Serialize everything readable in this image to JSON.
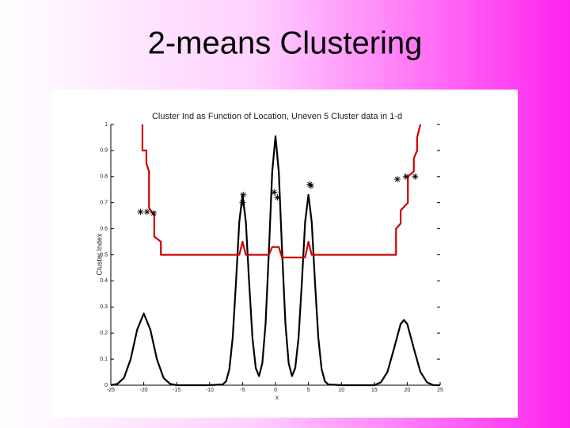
{
  "slide_title": "2-means Clustering",
  "chart_data": {
    "type": "line",
    "title": "Cluster Ind as Function of Location, Uneven 5 Cluster data in 1-d",
    "xlabel": "x",
    "ylabel": "Cluster Index",
    "xlim": [
      -25,
      25
    ],
    "xticks": [
      -25,
      -20,
      -15,
      -10,
      -5,
      0,
      5,
      10,
      15,
      20,
      25
    ],
    "ylim": [
      0,
      1
    ],
    "yticks": [
      0,
      0.1,
      0.2,
      0.3,
      0.4,
      0.5,
      0.6,
      0.7,
      0.8,
      0.9,
      1
    ],
    "grid": false,
    "series": [
      {
        "type": "line",
        "color": "#000000",
        "x": [
          -25,
          -24,
          -23,
          -22,
          -21,
          -20,
          -19,
          -18,
          -17,
          -16,
          -15,
          -10,
          -8,
          -7.5,
          -7,
          -6.5,
          -6,
          -5.5,
          -5,
          -4.5,
          -4,
          -3.5,
          -3,
          -2.5,
          -2,
          -1.5,
          -1,
          -0.5,
          0,
          0.5,
          1,
          1.5,
          2,
          2.5,
          3,
          3.5,
          4,
          4.5,
          5,
          5.5,
          6,
          6.5,
          7,
          7.5,
          8,
          10,
          15,
          16,
          17,
          18,
          19,
          19.5,
          20,
          21,
          22,
          23,
          24,
          25
        ],
        "values": [
          0,
          0.005,
          0.028,
          0.099,
          0.213,
          0.275,
          0.213,
          0.099,
          0.028,
          0.005,
          0,
          0,
          0.003,
          0.015,
          0.062,
          0.182,
          0.393,
          0.626,
          0.73,
          0.626,
          0.393,
          0.182,
          0.066,
          0.035,
          0.084,
          0.238,
          0.515,
          0.818,
          0.955,
          0.818,
          0.515,
          0.238,
          0.084,
          0.035,
          0.066,
          0.182,
          0.393,
          0.626,
          0.73,
          0.626,
          0.393,
          0.182,
          0.062,
          0.015,
          0.003,
          0,
          0,
          0.011,
          0.051,
          0.141,
          0.235,
          0.25,
          0.235,
          0.141,
          0.051,
          0.011,
          0,
          0
        ]
      },
      {
        "type": "line",
        "color": "#cc0000",
        "x": [
          -20.2,
          -20.2,
          -19.6,
          -19.6,
          -19.2,
          -19.2,
          -18.4,
          -18.4,
          -17.4,
          -17.4,
          -5.5,
          -5,
          -4.5,
          -1,
          -0.5,
          0.5,
          1,
          4.5,
          5,
          5.5,
          18.3,
          18.3,
          19,
          19,
          20.1,
          20.1,
          21,
          21,
          21.5,
          21.5,
          22
        ],
        "values": [
          1,
          0.9,
          0.9,
          0.85,
          0.82,
          0.68,
          0.65,
          0.57,
          0.55,
          0.5,
          0.5,
          0.55,
          0.5,
          0.5,
          0.53,
          0.53,
          0.49,
          0.49,
          0.55,
          0.5,
          0.5,
          0.6,
          0.62,
          0.67,
          0.7,
          0.8,
          0.82,
          0.87,
          0.9,
          0.95,
          1
        ]
      },
      {
        "type": "scatter",
        "color": "#000000",
        "x": [
          -20.5,
          -19.5,
          -18.5,
          -5,
          -4.9,
          -0.2,
          0.3,
          5.2,
          5.4,
          18.5,
          19.8,
          21.2
        ],
        "values": [
          0.665,
          0.665,
          0.66,
          0.7,
          0.73,
          0.74,
          0.72,
          0.77,
          0.765,
          0.79,
          0.8,
          0.8
        ]
      }
    ]
  }
}
